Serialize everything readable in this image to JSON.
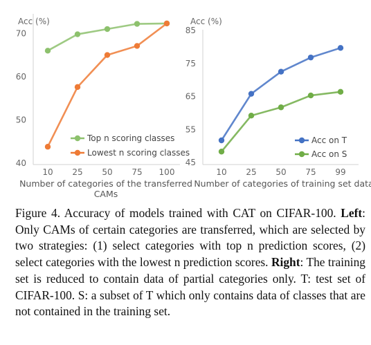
{
  "chart_data": [
    {
      "type": "line",
      "ylabel": "Acc (%)",
      "xlabel": "Number of categories of the transferred CAMs",
      "categories": [
        "10",
        "25",
        "50",
        "75",
        "100"
      ],
      "ylim": [
        40,
        75
      ],
      "yticks": [
        40,
        50,
        60,
        70
      ],
      "grid": false,
      "legend_position": "bottom-right",
      "series": [
        {
          "name": "Top n scoring classes",
          "color": "#8dc16d",
          "values": [
            66.0,
            69.8,
            71.0,
            72.2,
            72.3
          ]
        },
        {
          "name": "Lowest n scoring classes",
          "color": "#ee7b36",
          "values": [
            43.8,
            57.6,
            65.0,
            67.1,
            72.3
          ]
        }
      ]
    },
    {
      "type": "line",
      "ylabel": "Acc (%)",
      "xlabel": "Number of categories of training set data",
      "categories": [
        "10",
        "25",
        "50",
        "75",
        "99"
      ],
      "ylim": [
        45,
        85
      ],
      "yticks": [
        45,
        55,
        65,
        75,
        85
      ],
      "grid": false,
      "legend_position": "bottom-right",
      "series": [
        {
          "name": "Acc on T",
          "color": "#4472c4",
          "values": [
            51.7,
            65.8,
            72.5,
            76.8,
            79.7
          ]
        },
        {
          "name": "Acc on S",
          "color": "#70ad47",
          "values": [
            48.3,
            59.2,
            61.7,
            65.3,
            66.4
          ]
        }
      ]
    }
  ],
  "caption": {
    "figure_label": "Figure 4.",
    "intro": "Accuracy of models trained with CAT on CIFAR-100.",
    "left_label": "Left",
    "left_text": ": Only CAMs of certain categories are transferred, which are selected by two strategies: (1) select categories with top n prediction scores, (2) select categories with the lowest n prediction scores.",
    "right_label": "Right",
    "right_text": ": The training set is reduced to contain data of partial categories only. T: test set of CIFAR-100. S: a subset of T which only contains data of classes that are not contained in the training set."
  }
}
